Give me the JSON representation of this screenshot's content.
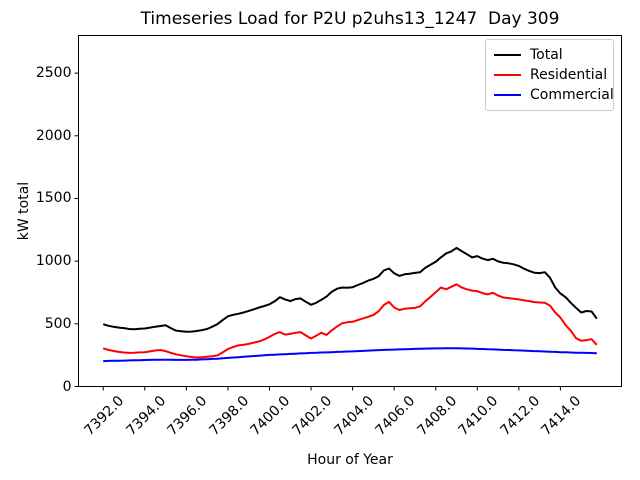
{
  "chart_data": {
    "type": "line",
    "title": "Timeseries Load for P2U p2uhs13_1247  Day 309",
    "xlabel": "Hour of Year",
    "ylabel": "kW total",
    "xlim": [
      7390.81,
      7416.94
    ],
    "ylim": [
      0,
      2800
    ],
    "grid": false,
    "legend_position": "upper right",
    "xticks": [
      7392,
      7394,
      7396,
      7398,
      7400,
      7402,
      7404,
      7406,
      7408,
      7410,
      7412,
      7414
    ],
    "xtick_labels": [
      "7392.0",
      "7394.0",
      "7396.0",
      "7398.0",
      "7400.0",
      "7402.0",
      "7404.0",
      "7406.0",
      "7408.0",
      "7410.0",
      "7412.0",
      "7414.0"
    ],
    "yticks": [
      0,
      500,
      1000,
      1500,
      2000,
      2500
    ],
    "ytick_labels": [
      "0",
      "500",
      "1000",
      "1500",
      "2000",
      "2500"
    ],
    "x": [
      7392,
      7392.25,
      7392.5,
      7392.75,
      7393,
      7393.25,
      7393.5,
      7393.75,
      7394,
      7394.25,
      7394.5,
      7394.75,
      7395,
      7395.25,
      7395.5,
      7395.75,
      7396,
      7396.25,
      7396.5,
      7396.75,
      7397,
      7397.25,
      7397.5,
      7397.75,
      7398,
      7398.25,
      7398.5,
      7398.75,
      7399,
      7399.25,
      7399.5,
      7399.75,
      7400,
      7400.25,
      7400.5,
      7400.75,
      7401,
      7401.25,
      7401.5,
      7401.75,
      7402,
      7402.25,
      7402.5,
      7402.75,
      7403,
      7403.25,
      7403.5,
      7403.75,
      7404,
      7404.25,
      7404.5,
      7404.75,
      7405,
      7405.25,
      7405.5,
      7405.75,
      7406,
      7406.25,
      7406.5,
      7406.75,
      7407,
      7407.25,
      7407.5,
      7407.75,
      7408,
      7408.25,
      7408.5,
      7408.75,
      7409,
      7409.25,
      7409.5,
      7409.75,
      7410,
      7410.25,
      7410.5,
      7410.75,
      7411,
      7411.25,
      7411.5,
      7411.75,
      7412,
      7412.25,
      7412.5,
      7412.75,
      7413,
      7413.25,
      7413.5,
      7413.75,
      7414,
      7414.25,
      7414.5,
      7414.75,
      7415,
      7415.25,
      7415.5,
      7415.75
    ],
    "series": [
      {
        "name": "Total",
        "color": "#000000",
        "values": [
          497,
          484,
          476,
          470,
          466,
          459,
          457,
          461,
          463,
          470,
          477,
          483,
          488,
          466,
          446,
          440,
          436,
          438,
          443,
          450,
          459,
          477,
          498,
          530,
          560,
          572,
          580,
          590,
          603,
          616,
          630,
          642,
          656,
          680,
          712,
          695,
          681,
          697,
          703,
          676,
          652,
          668,
          692,
          718,
          756,
          780,
          790,
          788,
          792,
          810,
          826,
          845,
          858,
          880,
          925,
          941,
          903,
          882,
          895,
          900,
          906,
          912,
          948,
          972,
          995,
          1030,
          1062,
          1078,
          1106,
          1080,
          1055,
          1030,
          1040,
          1020,
          1008,
          1019,
          998,
          987,
          983,
          975,
          962,
          940,
          922,
          908,
          905,
          912,
          868,
          790,
          742,
          712,
          668,
          628,
          590,
          602,
          598,
          541
        ]
      },
      {
        "name": "Residential",
        "color": "#ff0000",
        "values": [
          305,
          292,
          283,
          276,
          271,
          268,
          269,
          272,
          274,
          280,
          287,
          291,
          282,
          268,
          257,
          249,
          241,
          235,
          231,
          233,
          237,
          242,
          248,
          272,
          298,
          315,
          328,
          333,
          340,
          350,
          360,
          376,
          396,
          420,
          434,
          414,
          420,
          428,
          434,
          408,
          383,
          405,
          428,
          412,
          448,
          478,
          505,
          512,
          516,
          530,
          543,
          556,
          570,
          600,
          650,
          675,
          630,
          610,
          620,
          624,
          627,
          640,
          680,
          715,
          752,
          790,
          775,
          795,
          815,
          790,
          775,
          765,
          760,
          745,
          735,
          748,
          725,
          710,
          705,
          700,
          695,
          688,
          681,
          673,
          670,
          668,
          645,
          590,
          550,
          490,
          445,
          385,
          365,
          370,
          377,
          333
        ]
      },
      {
        "name": "Commercial",
        "color": "#0000ff",
        "values": [
          203,
          204,
          205,
          206,
          207,
          208,
          209,
          210,
          211,
          212,
          213,
          214,
          214,
          213,
          212,
          212,
          212,
          213,
          214,
          216,
          218,
          220,
          222,
          225,
          228,
          231,
          234,
          237,
          240,
          243,
          246,
          249,
          252,
          254,
          256,
          258,
          260,
          262,
          264,
          266,
          268,
          269,
          271,
          272,
          274,
          276,
          277,
          279,
          280,
          282,
          284,
          286,
          288,
          290,
          292,
          293,
          294,
          296,
          297,
          298,
          300,
          301,
          302,
          303,
          304,
          304,
          305,
          305,
          305,
          304,
          303,
          302,
          300,
          299,
          297,
          296,
          294,
          292,
          291,
          289,
          288,
          286,
          284,
          282,
          281,
          279,
          277,
          276,
          274,
          273,
          271,
          270,
          269,
          268,
          267,
          266
        ]
      }
    ]
  }
}
